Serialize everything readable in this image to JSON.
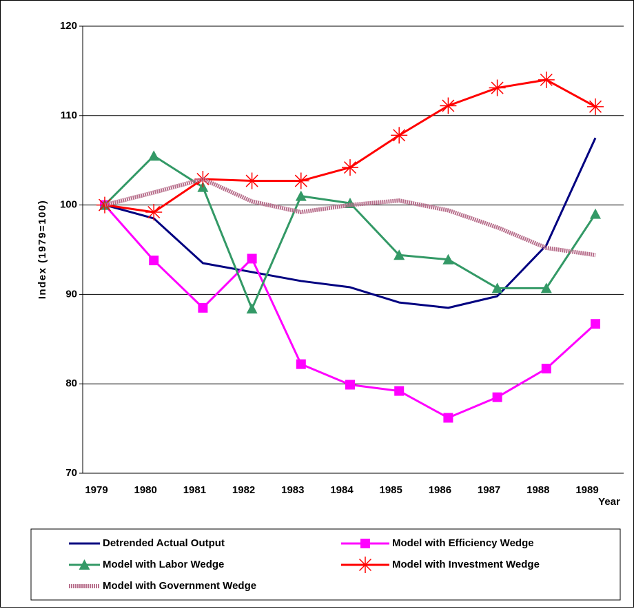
{
  "chart_data": {
    "type": "line",
    "y_label": "Index (1979=100)",
    "x_label": "Year",
    "categories": [
      "1979",
      "1980",
      "1981",
      "1982",
      "1983",
      "1984",
      "1985",
      "1986",
      "1987",
      "1988",
      "1989"
    ],
    "ylim": [
      70,
      120
    ],
    "yticks": [
      70,
      80,
      90,
      100,
      110,
      120
    ],
    "grid": true,
    "legend": "bottom",
    "series": [
      {
        "name": "Detrended Actual Output",
        "color": "#000080",
        "marker": "none",
        "values": [
          100,
          98.5,
          93.5,
          92.5,
          91.5,
          90.8,
          89.1,
          88.5,
          89.8,
          95.5,
          107.5
        ]
      },
      {
        "name": "Model with Efficiency Wedge",
        "color": "#ff00ff",
        "marker": "square",
        "values": [
          100,
          93.8,
          88.5,
          94,
          82.2,
          79.9,
          79.2,
          76.2,
          78.5,
          81.7,
          86.7
        ]
      },
      {
        "name": "Model with Labor Wedge",
        "color": "#339966",
        "marker": "triangle",
        "values": [
          100,
          105.5,
          102,
          88.4,
          101,
          100.2,
          94.4,
          93.9,
          90.7,
          90.7,
          99
        ]
      },
      {
        "name": "Model with Investment Wedge",
        "color": "#ff0000",
        "marker": "star",
        "values": [
          100,
          99.2,
          102.9,
          102.7,
          102.7,
          104.2,
          107.8,
          111.1,
          113.1,
          114,
          111
        ]
      },
      {
        "name": "Model with Government Wedge",
        "color": "#b86f8c",
        "marker": "none",
        "values": [
          100,
          101.4,
          102.9,
          100.4,
          99.2,
          100,
          100.5,
          99.4,
          97.5,
          95.2,
          94.4
        ]
      }
    ]
  }
}
